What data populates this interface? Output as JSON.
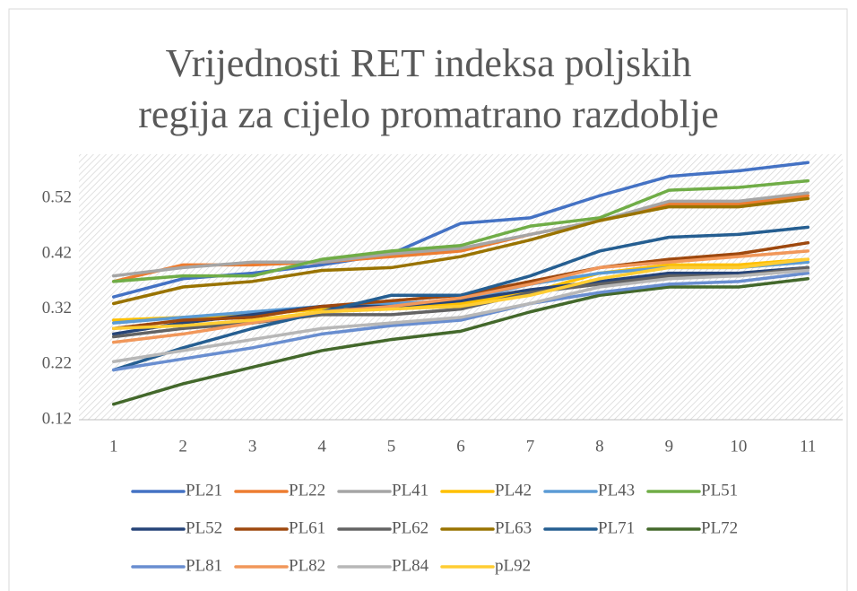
{
  "chart_data": {
    "type": "line",
    "title": [
      "Vrijednosti RET indeksa poljskih",
      "regija za cijelo promatrano razdoblje"
    ],
    "categories": [
      "1",
      "2",
      "3",
      "4",
      "5",
      "6",
      "7",
      "8",
      "9",
      "10",
      "11"
    ],
    "ylim": [
      0.12,
      0.6
    ],
    "yticks": [
      0.12,
      0.22,
      0.32,
      0.42,
      0.52
    ],
    "grid": false,
    "legend": "bottom",
    "series": [
      {
        "name": "PL21",
        "color": "#4472c4",
        "values": [
          0.342,
          0.375,
          0.385,
          0.4,
          0.42,
          0.475,
          0.485,
          0.525,
          0.56,
          0.57,
          0.585
        ]
      },
      {
        "name": "PL22",
        "color": "#ed7d31",
        "values": [
          0.37,
          0.4,
          0.4,
          0.405,
          0.415,
          0.425,
          0.455,
          0.48,
          0.51,
          0.51,
          0.525
        ]
      },
      {
        "name": "PL41",
        "color": "#a5a5a5",
        "values": [
          0.38,
          0.395,
          0.405,
          0.405,
          0.42,
          0.43,
          0.455,
          0.48,
          0.515,
          0.515,
          0.53
        ]
      },
      {
        "name": "PL42",
        "color": "#ffc000",
        "values": [
          0.3,
          0.305,
          0.31,
          0.32,
          0.325,
          0.33,
          0.35,
          0.385,
          0.4,
          0.4,
          0.41
        ]
      },
      {
        "name": "PL43",
        "color": "#5b9bd5",
        "values": [
          0.295,
          0.305,
          0.315,
          0.325,
          0.33,
          0.335,
          0.365,
          0.385,
          0.395,
          0.395,
          0.405
        ]
      },
      {
        "name": "PL51",
        "color": "#70ad47",
        "values": [
          0.37,
          0.38,
          0.38,
          0.41,
          0.425,
          0.435,
          0.47,
          0.485,
          0.535,
          0.54,
          0.552
        ]
      },
      {
        "name": "PL52",
        "color": "#264478",
        "values": [
          0.275,
          0.295,
          0.31,
          0.325,
          0.325,
          0.335,
          0.355,
          0.37,
          0.385,
          0.385,
          0.395
        ]
      },
      {
        "name": "PL61",
        "color": "#9e480e",
        "values": [
          0.285,
          0.3,
          0.305,
          0.325,
          0.335,
          0.345,
          0.37,
          0.395,
          0.41,
          0.42,
          0.44
        ]
      },
      {
        "name": "PL62",
        "color": "#636363",
        "values": [
          0.27,
          0.285,
          0.295,
          0.31,
          0.31,
          0.32,
          0.35,
          0.365,
          0.38,
          0.38,
          0.395
        ]
      },
      {
        "name": "PL63",
        "color": "#997300",
        "values": [
          0.33,
          0.36,
          0.37,
          0.39,
          0.395,
          0.415,
          0.445,
          0.48,
          0.505,
          0.505,
          0.52
        ]
      },
      {
        "name": "PL71",
        "color": "#255e91",
        "values": [
          0.21,
          0.25,
          0.285,
          0.315,
          0.345,
          0.345,
          0.38,
          0.425,
          0.45,
          0.455,
          0.468
        ]
      },
      {
        "name": "PL72",
        "color": "#43682b",
        "values": [
          0.148,
          0.185,
          0.215,
          0.245,
          0.265,
          0.28,
          0.315,
          0.345,
          0.36,
          0.36,
          0.375
        ]
      },
      {
        "name": "PL81",
        "color": "#698ed0",
        "values": [
          0.21,
          0.23,
          0.25,
          0.275,
          0.29,
          0.3,
          0.33,
          0.35,
          0.365,
          0.37,
          0.385
        ]
      },
      {
        "name": "PL82",
        "color": "#f1975a",
        "values": [
          0.26,
          0.275,
          0.295,
          0.315,
          0.325,
          0.34,
          0.365,
          0.395,
          0.405,
          0.415,
          0.425
        ]
      },
      {
        "name": "PL84",
        "color": "#b7b7b7",
        "values": [
          0.225,
          0.245,
          0.265,
          0.285,
          0.295,
          0.305,
          0.33,
          0.36,
          0.375,
          0.38,
          0.39
        ]
      },
      {
        "name": "pL92",
        "color": "#ffcd33",
        "values": [
          0.285,
          0.29,
          0.3,
          0.315,
          0.32,
          0.325,
          0.345,
          0.375,
          0.395,
          0.395,
          0.41
        ]
      }
    ]
  }
}
